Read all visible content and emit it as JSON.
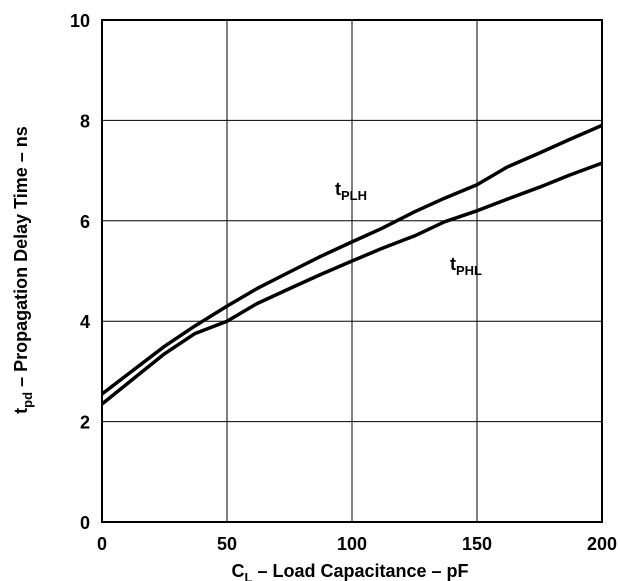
{
  "chart_data": {
    "type": "line",
    "xlabel": {
      "main": "C",
      "sub": "L",
      "rest": " – Load Capacitance – pF"
    },
    "ylabel": {
      "main": "t",
      "sub": "pd",
      "rest": " – Propagation Delay Time – ns"
    },
    "xlim": [
      0,
      200
    ],
    "ylim": [
      0,
      10
    ],
    "x_ticks": [
      0,
      50,
      100,
      150,
      200
    ],
    "y_ticks": [
      0,
      2,
      4,
      6,
      8,
      10
    ],
    "grid": true,
    "series": [
      {
        "name": {
          "main": "t",
          "sub": "PLH"
        },
        "x": [
          0,
          25,
          37,
          50,
          62,
          75,
          87,
          100,
          112,
          125,
          137,
          150,
          162,
          175,
          187,
          200
        ],
        "y": [
          2.55,
          3.5,
          3.9,
          4.3,
          4.65,
          4.98,
          5.28,
          5.58,
          5.85,
          6.18,
          6.45,
          6.72,
          7.07,
          7.35,
          7.62,
          7.9
        ]
      },
      {
        "name": {
          "main": "t",
          "sub": "PHL"
        },
        "x": [
          0,
          25,
          37,
          50,
          62,
          75,
          87,
          100,
          112,
          125,
          137,
          150,
          162,
          175,
          187,
          200
        ],
        "y": [
          2.35,
          3.35,
          3.75,
          4.0,
          4.35,
          4.65,
          4.92,
          5.2,
          5.45,
          5.7,
          5.98,
          6.2,
          6.43,
          6.67,
          6.91,
          7.15
        ]
      }
    ]
  }
}
